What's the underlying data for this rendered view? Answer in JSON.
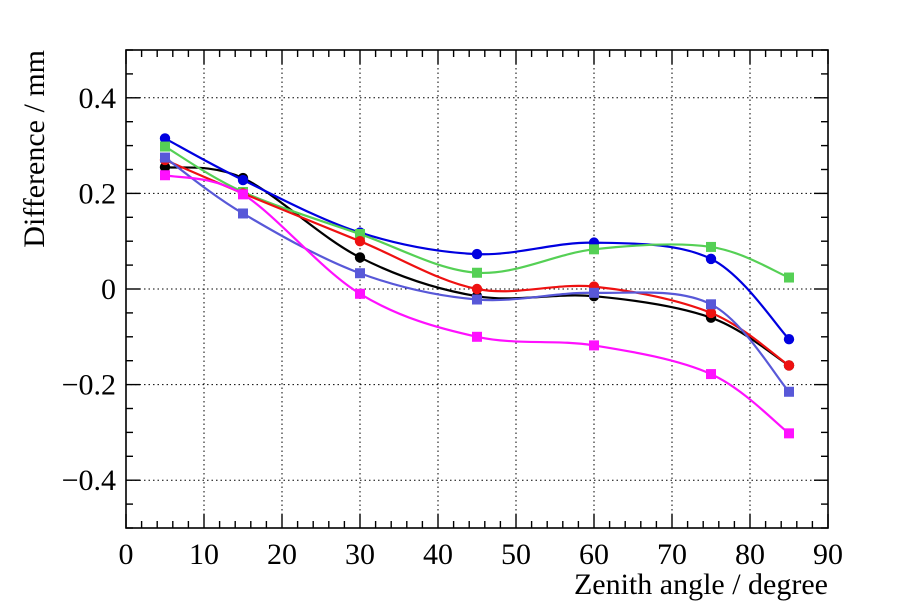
{
  "chart_data": {
    "type": "line",
    "title": "",
    "xlabel": "Zenith angle / degree",
    "ylabel": "Difference / mm",
    "xlim": [
      0,
      90
    ],
    "ylim": [
      -0.5,
      0.5
    ],
    "xticks": [
      0,
      10,
      20,
      30,
      40,
      50,
      60,
      70,
      80,
      90
    ],
    "xtick_labels": [
      "0",
      "10",
      "20",
      "30",
      "40",
      "50",
      "60",
      "70",
      "80",
      "90"
    ],
    "yticks": [
      -0.4,
      -0.2,
      0,
      0.2,
      0.4
    ],
    "ytick_labels": [
      "−0.4",
      "−0.2",
      "0",
      "0.2",
      "0.4"
    ],
    "grid": true,
    "x": [
      5,
      15,
      30,
      45,
      60,
      75,
      85
    ],
    "series": [
      {
        "name": "black circles",
        "color": "#000000",
        "marker": "circle",
        "values": [
          0.255,
          0.232,
          0.066,
          -0.015,
          -0.015,
          -0.06,
          -0.16
        ]
      },
      {
        "name": "blue circles",
        "color": "#0000e0",
        "marker": "circle",
        "values": [
          0.315,
          0.228,
          0.118,
          0.073,
          0.097,
          0.063,
          -0.105
        ]
      },
      {
        "name": "green squares",
        "color": "#55d055",
        "marker": "square",
        "values": [
          0.298,
          0.203,
          0.115,
          0.034,
          0.083,
          0.088,
          0.024
        ]
      },
      {
        "name": "red circles",
        "color": "#ee1111",
        "marker": "circle",
        "values": [
          0.27,
          0.2,
          0.1,
          0.0,
          0.005,
          -0.05,
          -0.16
        ]
      },
      {
        "name": "purple squares",
        "color": "#5858d8",
        "marker": "square",
        "values": [
          0.275,
          0.158,
          0.033,
          -0.022,
          -0.008,
          -0.032,
          -0.215
        ]
      },
      {
        "name": "magenta squares",
        "color": "#ff10ff",
        "marker": "square",
        "values": [
          0.238,
          0.198,
          -0.01,
          -0.1,
          -0.118,
          -0.178,
          -0.302
        ]
      }
    ]
  }
}
